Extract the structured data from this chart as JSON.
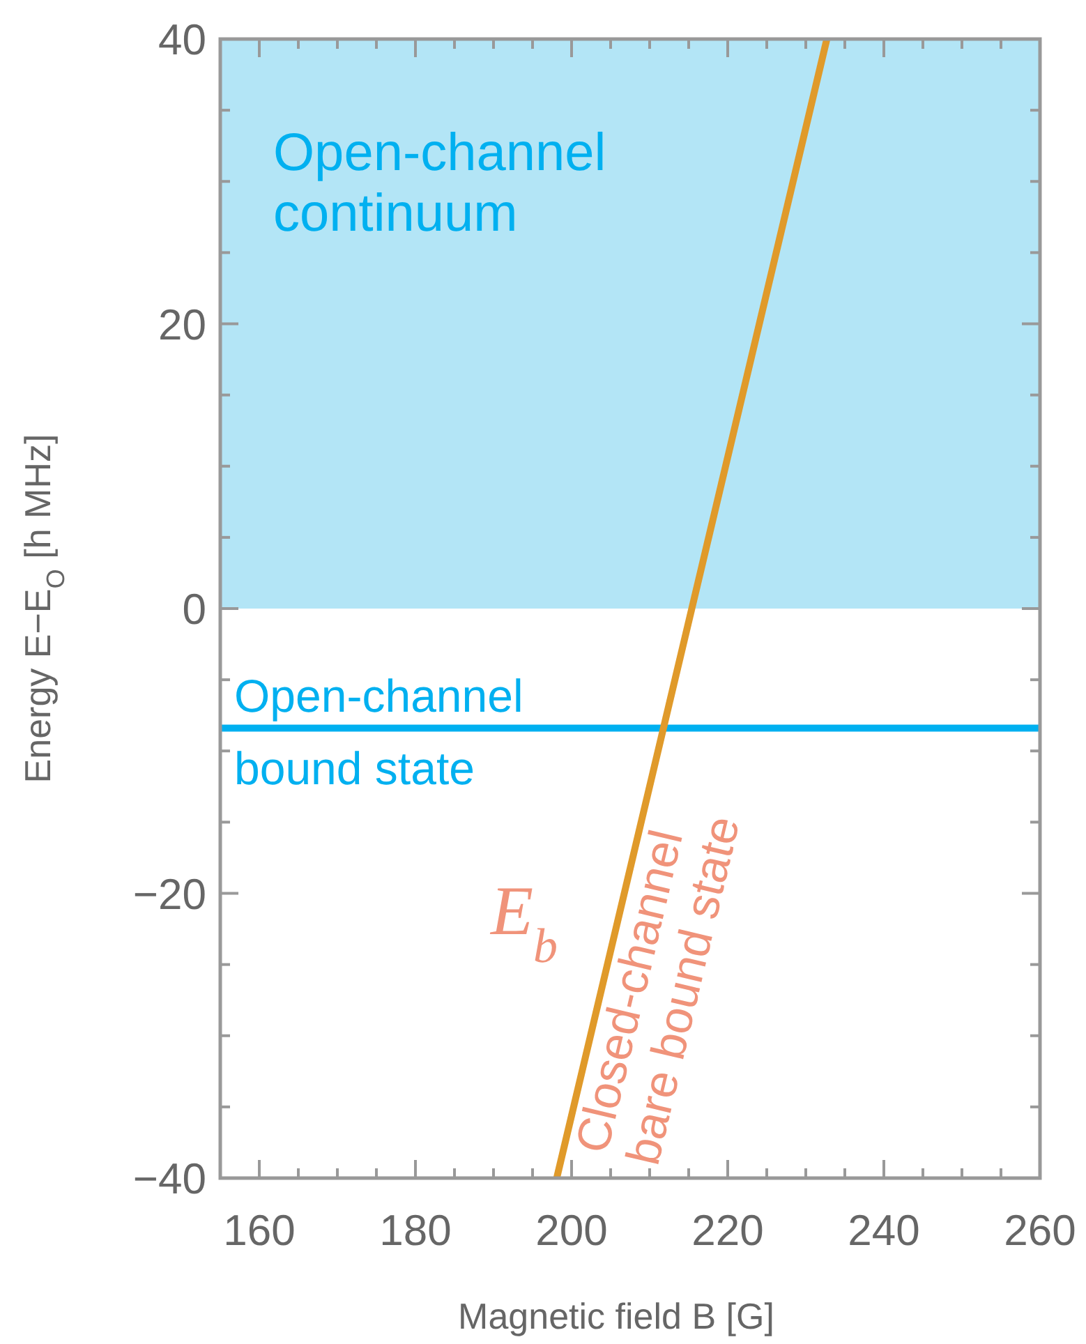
{
  "chart_data": {
    "type": "line",
    "xlabel": "Magnetic field B [G]",
    "ylabel": "Energy E−E$_{O}$  [h MHz]",
    "xlim": [
      155,
      260
    ],
    "ylim": [
      -40,
      40
    ],
    "xticks": [
      160,
      {
        "value": 165,
        "label": null
      },
      {
        "value": 170,
        "label": null
      },
      {
        "value": 175,
        "label": null
      },
      180,
      {
        "value": 185,
        "label": null
      },
      {
        "value": 190,
        "label": null
      },
      {
        "value": 195,
        "label": null
      },
      200,
      {
        "value": 205,
        "label": null
      },
      {
        "value": 210,
        "label": null
      },
      {
        "value": 215,
        "label": null
      },
      220,
      {
        "value": 225,
        "label": null
      },
      {
        "value": 230,
        "label": null
      },
      {
        "value": 235,
        "label": null
      },
      240,
      {
        "value": 245,
        "label": null
      },
      {
        "value": 250,
        "label": null
      },
      {
        "value": 255,
        "label": null
      },
      260
    ],
    "yticks": [
      -40,
      {
        "value": -35,
        "label": null
      },
      {
        "value": -30,
        "label": null
      },
      {
        "value": -25,
        "label": null
      },
      -20,
      {
        "value": -15,
        "label": null
      },
      {
        "value": -10,
        "label": null
      },
      {
        "value": -5,
        "label": null
      },
      0,
      {
        "value": 5,
        "label": null
      },
      {
        "value": 10,
        "label": null
      },
      {
        "value": 15,
        "label": null
      },
      20,
      {
        "value": 25,
        "label": null
      },
      {
        "value": 30,
        "label": null
      },
      {
        "value": 35,
        "label": null
      },
      40
    ],
    "series": [
      {
        "name": "Closed-channel bare bound state",
        "color": "#e09a2a",
        "x": [
          198.1,
          232.7
        ],
        "values": [
          -40,
          40
        ]
      }
    ],
    "bands": [
      {
        "axis": "y",
        "from": 0,
        "to": 40,
        "label": "Open-channel continuum",
        "color": "#b3e5f6"
      }
    ],
    "ref_lines": [
      {
        "axis": "y",
        "value": -8.4,
        "label": "Open-channel bound state",
        "color": "#00b0f0"
      }
    ],
    "annotations": [
      "E$_{b}$"
    ]
  }
}
